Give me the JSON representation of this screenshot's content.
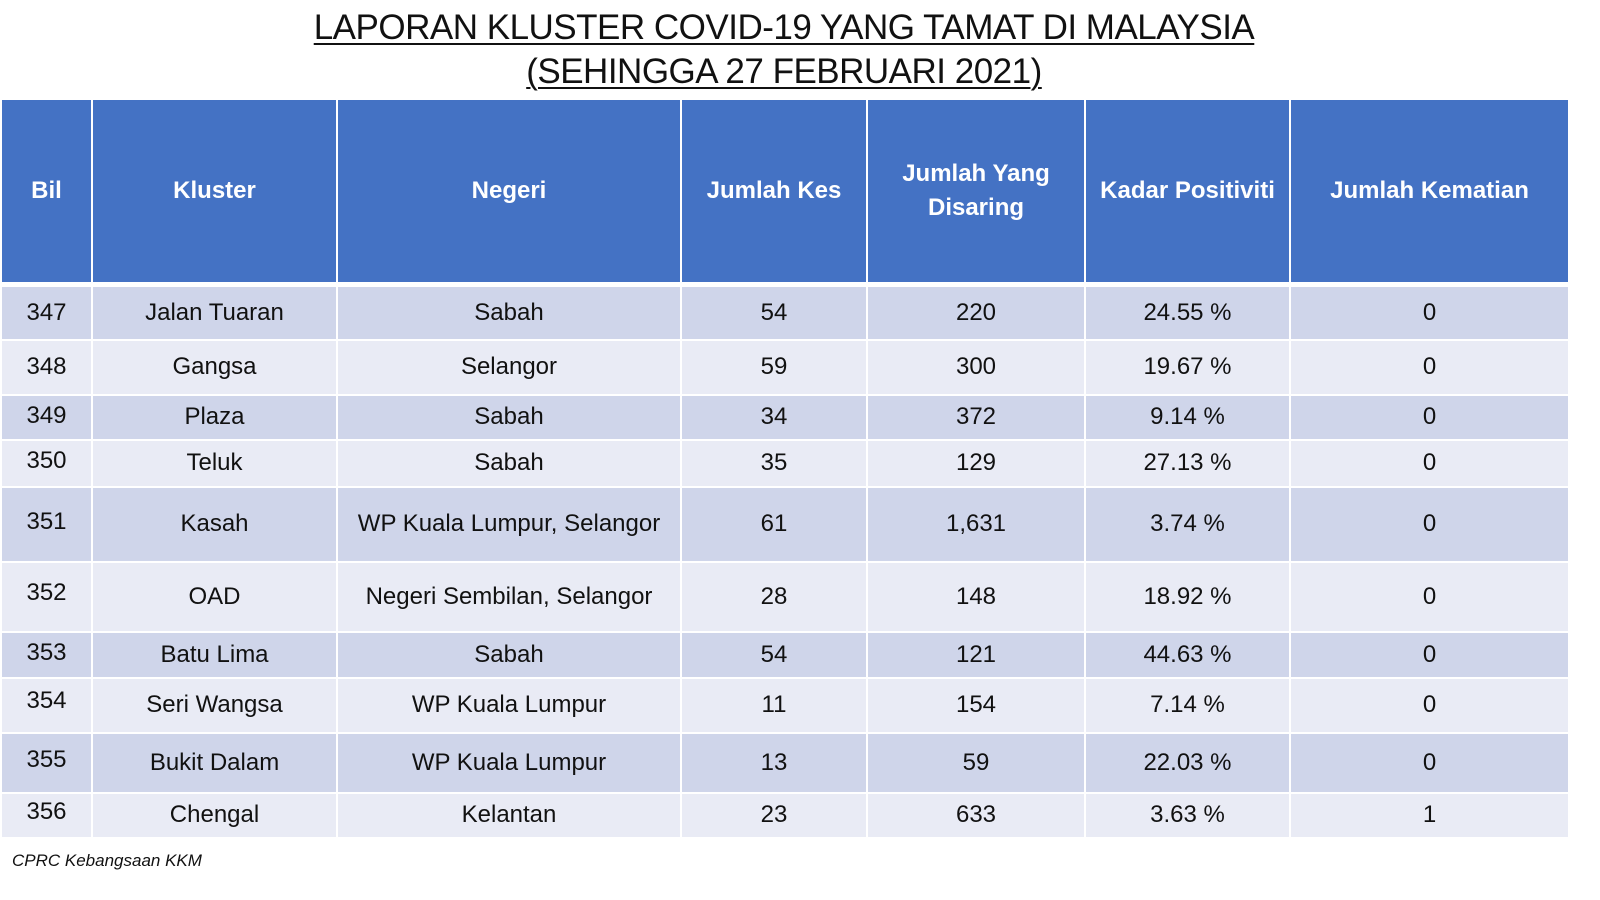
{
  "title": {
    "line1": "LAPORAN KLUSTER COVID-19 YANG TAMAT DI MALAYSIA",
    "line2": "(SEHINGGA 27 FEBRUARI 2021)"
  },
  "table": {
    "headers": {
      "bil": "Bil",
      "kluster": "Kluster",
      "negeri": "Negeri",
      "jumlah_kes": "Jumlah Kes",
      "jumlah_disaring": "Jumlah Yang Disaring",
      "kadar_positiviti": "Kadar Positiviti",
      "jumlah_kematian": "Jumlah Kematian"
    },
    "rows": [
      {
        "bil": "347",
        "kluster": "Jalan Tuaran",
        "negeri": "Sabah",
        "kes": "54",
        "disaring": "220",
        "positiviti": "24.55 %",
        "kematian": "0"
      },
      {
        "bil": "348",
        "kluster": "Gangsa",
        "negeri": "Selangor",
        "kes": "59",
        "disaring": "300",
        "positiviti": "19.67 %",
        "kematian": "0"
      },
      {
        "bil": "349",
        "kluster": "Plaza",
        "negeri": "Sabah",
        "kes": "34",
        "disaring": "372",
        "positiviti": "9.14 %",
        "kematian": "0"
      },
      {
        "bil": "350",
        "kluster": "Teluk",
        "negeri": "Sabah",
        "kes": "35",
        "disaring": "129",
        "positiviti": "27.13 %",
        "kematian": "0"
      },
      {
        "bil": "351",
        "kluster": "Kasah",
        "negeri": "WP Kuala Lumpur, Selangor",
        "kes": "61",
        "disaring": "1,631",
        "positiviti": "3.74 %",
        "kematian": "0"
      },
      {
        "bil": "352",
        "kluster": "OAD",
        "negeri": "Negeri Sembilan, Selangor",
        "kes": "28",
        "disaring": "148",
        "positiviti": "18.92 %",
        "kematian": "0"
      },
      {
        "bil": "353",
        "kluster": "Batu Lima",
        "negeri": "Sabah",
        "kes": "54",
        "disaring": "121",
        "positiviti": "44.63 %",
        "kematian": "0"
      },
      {
        "bil": "354",
        "kluster": "Seri Wangsa",
        "negeri": "WP Kuala Lumpur",
        "kes": "11",
        "disaring": "154",
        "positiviti": "7.14 %",
        "kematian": "0"
      },
      {
        "bil": "355",
        "kluster": "Bukit Dalam",
        "negeri": "WP Kuala Lumpur",
        "kes": "13",
        "disaring": "59",
        "positiviti": "22.03 %",
        "kematian": "0"
      },
      {
        "bil": "356",
        "kluster": "Chengal",
        "negeri": "Kelantan",
        "kes": "23",
        "disaring": "633",
        "positiviti": "3.63 %",
        "kematian": "1"
      }
    ]
  },
  "source": "CPRC Kebangsaan KKM",
  "colors": {
    "header_bg": "#4472c4",
    "row_dark": "#cfd5ea",
    "row_light": "#e9ebf5"
  }
}
